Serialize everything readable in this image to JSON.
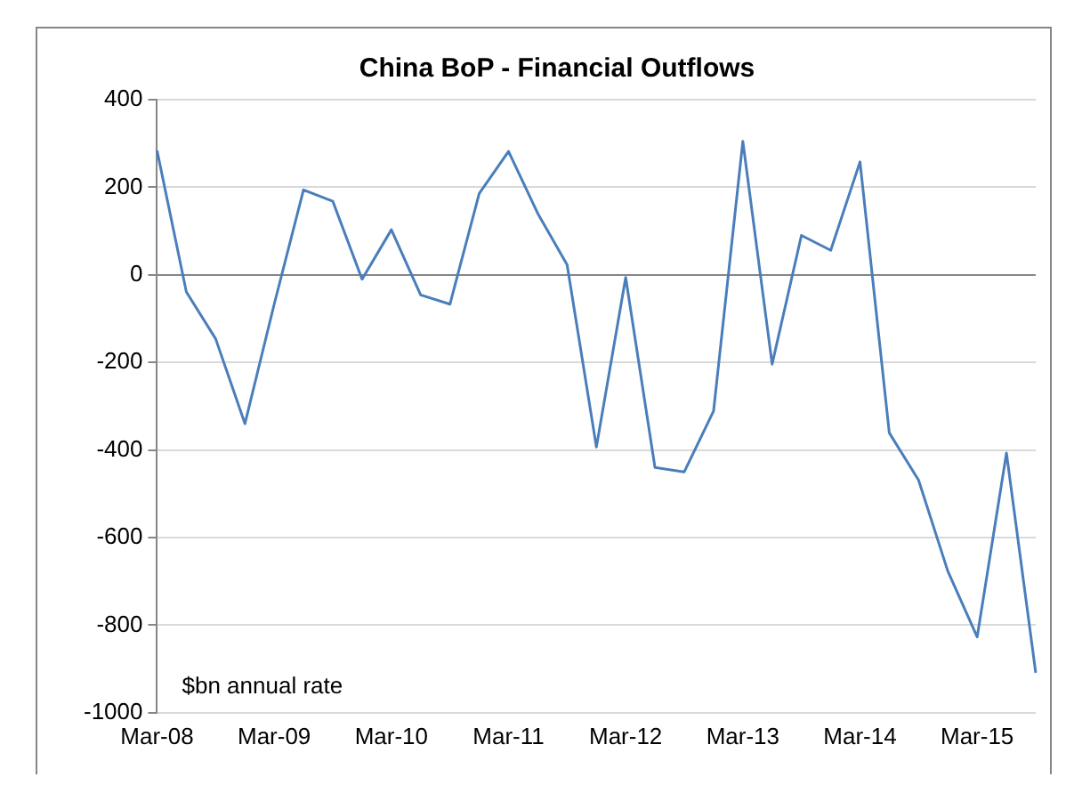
{
  "chart_data": {
    "type": "line",
    "title": "China BoP - Financial Outflows",
    "categories": [
      "Mar-08",
      null,
      null,
      null,
      "Mar-09",
      null,
      null,
      null,
      "Mar-10",
      null,
      null,
      null,
      "Mar-11",
      null,
      null,
      null,
      "Mar-12",
      null,
      null,
      null,
      "Mar-13",
      null,
      null,
      null,
      "Mar-14",
      null,
      null,
      null,
      "Mar-15",
      null,
      null
    ],
    "series": [
      {
        "color": "#4a7ebb",
        "values": [
          284,
          -39,
          -146,
          -340,
          -67,
          194,
          168,
          -10,
          103,
          -46,
          -67,
          186,
          282,
          140,
          23,
          -393,
          -6,
          -440,
          -450,
          -311,
          305,
          -204,
          90,
          56,
          258,
          -361,
          -469,
          -677,
          -827,
          -407,
          -909
        ]
      }
    ],
    "ylim": [
      -1000,
      400
    ],
    "yticks": [
      -1000,
      -800,
      -600,
      -400,
      -200,
      0,
      200,
      400
    ],
    "grid": "y",
    "legend": false,
    "marker": "none",
    "line_style": "solid",
    "annotations": [
      "$bn annual rate"
    ]
  }
}
